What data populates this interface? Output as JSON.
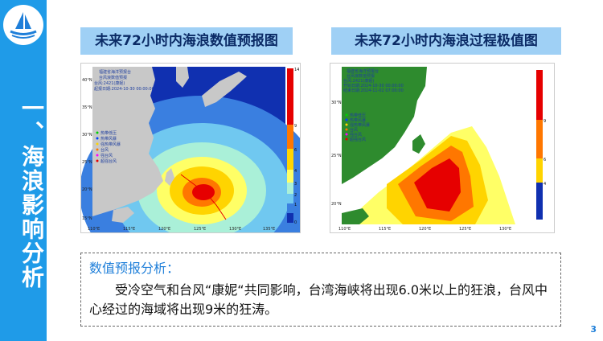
{
  "slide": {
    "section_title": "一、海浪影响分析",
    "page_number": "3"
  },
  "left_panel": {
    "title": "未来72小时内海浪数值预报图",
    "map_header": [
      "福建省海洋预报台",
      "台风浪数值预报",
      "台风:2421(康妮)",
      "起报日期:2024-10-30 00:00:00"
    ],
    "legend": [
      "热带低压",
      "热带风暴",
      "强热带风暴",
      "台风",
      "强台风",
      "超强台风"
    ],
    "lat_labels": [
      "40°N",
      "35°N",
      "30°N",
      "25°N",
      "20°N",
      "15°N"
    ],
    "lon_labels": [
      "110°E",
      "115°E",
      "120°E",
      "125°E",
      "130°E",
      "135°E"
    ],
    "colorbar_ticks": [
      "14",
      "9",
      "6",
      "4",
      "3",
      "2",
      "1",
      "0"
    ]
  },
  "right_panel": {
    "title": "未来72小时内海浪过程极值图",
    "map_header": [
      "福建省海洋预报台",
      "台风浪数值预报",
      "台风:2421(康妮)",
      "开始日期:2024-10-30 00:00:00",
      "结束日期:2024-11-02 07:00:00"
    ],
    "legend": [
      "热带低压",
      "热带风暴",
      "强热带风暴",
      "台风",
      "强台风",
      "超强台风"
    ],
    "lat_labels": [
      "30°N",
      "25°N",
      "20°N"
    ],
    "lon_labels": [
      "110°E",
      "115°E",
      "120°E",
      "125°E",
      "130°E"
    ],
    "colorbar_ticks": [
      "9",
      "6",
      "4"
    ]
  },
  "analysis": {
    "title": "数值预报分析：",
    "text": "受冷空气和台风“康妮“共同影响，台湾海峡将出现6.0米以上的狂浪，台风中心经过的海域将出现9米的狂涛。"
  },
  "colors": {
    "sidebar": "#1f9be8",
    "title_band": "#9fd0f5",
    "title_text": "#0b2b66",
    "analysis_title": "#1f7fd9",
    "wave_14": "#e60000",
    "wave_9": "#ff7700",
    "wave_6": "#ffd400",
    "wave_4": "#ffff66",
    "wave_3": "#aaf0d8",
    "wave_2": "#70c8f0",
    "wave_1": "#3a7fe0",
    "wave_0": "#1030b0"
  }
}
